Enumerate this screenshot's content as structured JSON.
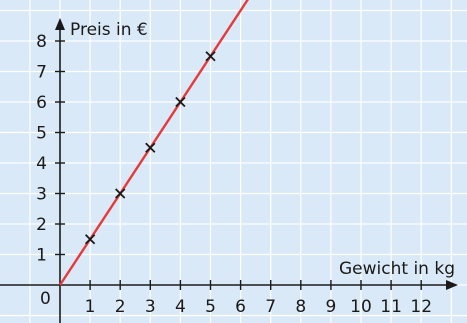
{
  "chart_data": {
    "type": "line",
    "xlabel": "Gewicht in kg",
    "ylabel": "Preis in €",
    "origin_label": "0",
    "xlim": [
      0,
      13
    ],
    "ylim": [
      0,
      8.6
    ],
    "x_ticks": [
      "1",
      "2",
      "3",
      "4",
      "5",
      "6",
      "7",
      "8",
      "9",
      "10",
      "11",
      "12"
    ],
    "y_ticks": [
      "1",
      "2",
      "3",
      "4",
      "5",
      "6",
      "7",
      "8"
    ],
    "grid": true,
    "line_color": "#e63a3a",
    "background": "#d9e9f7",
    "line": {
      "slope": 1.5,
      "intercept": 0
    },
    "points": [
      {
        "x": 1,
        "y": 1.5
      },
      {
        "x": 2,
        "y": 3
      },
      {
        "x": 3,
        "y": 4.5
      },
      {
        "x": 4,
        "y": 6
      },
      {
        "x": 5,
        "y": 7.5
      }
    ]
  }
}
